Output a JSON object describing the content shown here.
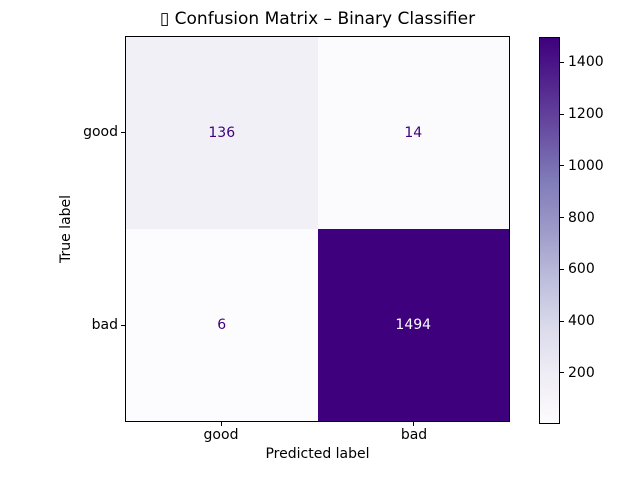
{
  "figure": {
    "background": "#ffffff",
    "axis_color": "#000000",
    "text_color": "#000000"
  },
  "chart_data": {
    "type": "heatmap",
    "chart_kind": "confusion_matrix",
    "title": "▯ Confusion Matrix – Binary Classifier",
    "xlabel": "Predicted label",
    "ylabel": "True label",
    "x_categories": [
      "good",
      "bad"
    ],
    "y_categories": [
      "good",
      "bad"
    ],
    "matrix": [
      [
        136,
        14
      ],
      [
        6,
        1494
      ]
    ],
    "value_range": [
      6,
      1494
    ],
    "colormap": "Purples",
    "colormap_stops": [
      "#fcfbfd",
      "#efedf5",
      "#dadaeb",
      "#bcbddc",
      "#9e9ac8",
      "#807dba",
      "#6a51a3",
      "#54278f",
      "#3f007d"
    ],
    "colorbar_ticks": [
      200,
      400,
      600,
      800,
      1000,
      1200,
      1400
    ],
    "legend_position": "right-colorbar",
    "grid": false,
    "cells": [
      {
        "true_label": "good",
        "pred_label": "good",
        "value": 136,
        "bg": "#f2f0f7",
        "fg": "#3f007d"
      },
      {
        "true_label": "good",
        "pred_label": "bad",
        "value": 14,
        "bg": "#fbfafd",
        "fg": "#3f007d"
      },
      {
        "true_label": "bad",
        "pred_label": "good",
        "value": 6,
        "bg": "#fcfbfd",
        "fg": "#3f007d"
      },
      {
        "true_label": "bad",
        "pred_label": "bad",
        "value": 1494,
        "bg": "#3f007d",
        "fg": "#fcfbfd"
      }
    ]
  }
}
